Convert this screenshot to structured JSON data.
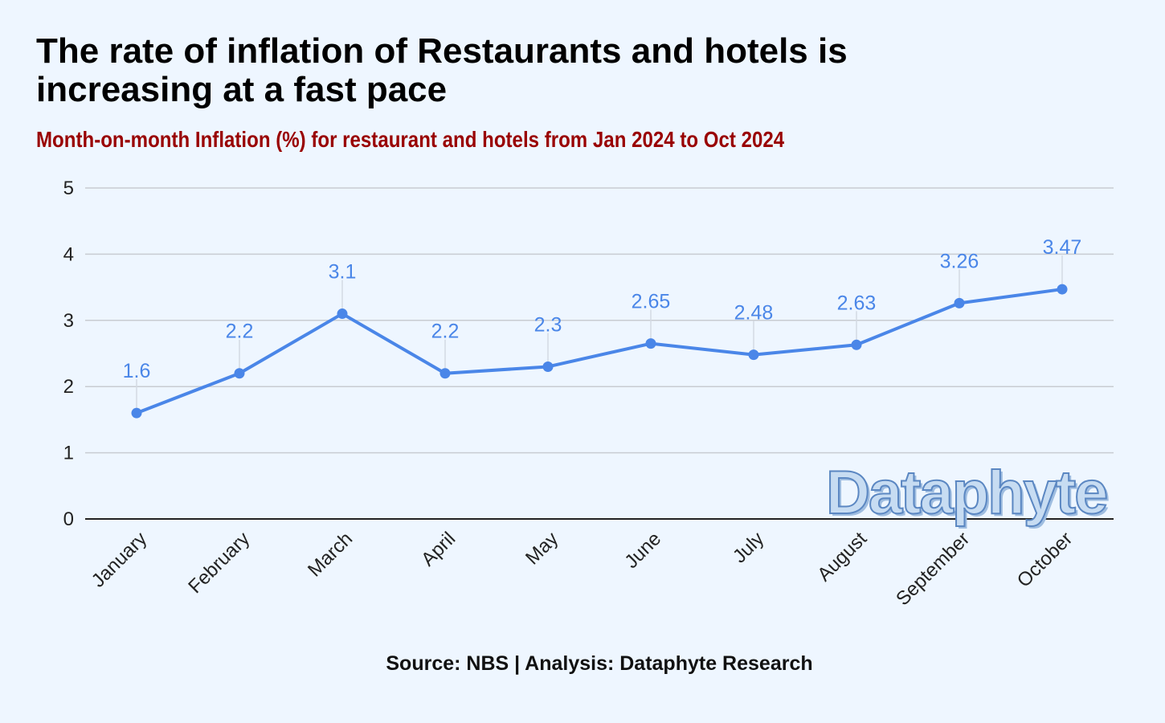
{
  "title": "The rate of inflation of Restaurants and hotels is increasing at a fast pace",
  "subtitle": "Month-on-month Inflation (%) for restaurant and hotels from Jan 2024 to Oct 2024",
  "source": "Source: NBS | Analysis: Dataphyte Research",
  "watermark": "Dataphyte",
  "colors": {
    "background": "#eef6ff",
    "line": "#4a86e8",
    "subtitle": "#990000",
    "grid": "#c8ccd2"
  },
  "chart_data": {
    "type": "line",
    "categories": [
      "January",
      "February",
      "March",
      "April",
      "May",
      "June",
      "July",
      "August",
      "September",
      "October"
    ],
    "series": [
      {
        "values": [
          1.6,
          2.2,
          3.1,
          2.2,
          2.3,
          2.65,
          2.48,
          2.63,
          3.26,
          3.47
        ]
      }
    ],
    "data_labels": [
      "1.6",
      "2.2",
      "3.1",
      "2.2",
      "2.3",
      "2.65",
      "2.48",
      "2.63",
      "3.26",
      "3.47"
    ],
    "yticks": [
      0,
      1,
      2,
      3,
      4,
      5
    ],
    "ylim": [
      0,
      5
    ],
    "xlabel": "",
    "ylabel": "",
    "grid": true,
    "legend": "none"
  }
}
